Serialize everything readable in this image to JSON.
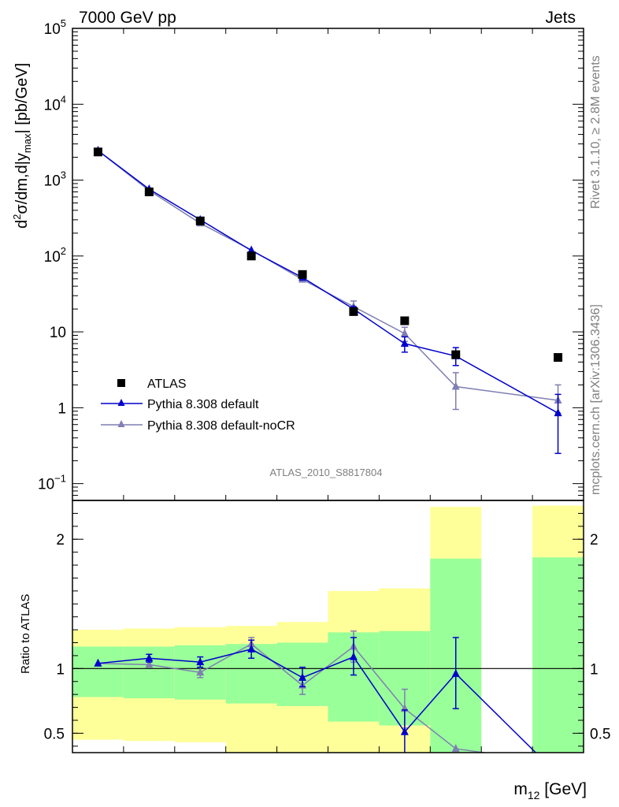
{
  "header": {
    "left": "7000 GeV pp",
    "right": "Jets"
  },
  "side_text": {
    "rivet": "Rivet 3.1.10, ≥ 2.8M events",
    "mcplots": "mcplots.cern.ch [arXiv:1306.3436]"
  },
  "analysis_label": "ATLAS_2010_S8817804",
  "colors": {
    "data": "#000000",
    "pythia_default": "#0000cc",
    "pythia_nocr": "#7f7fb2",
    "band_inner": "#99ff99",
    "band_outer": "#ffff99"
  },
  "chart_data": [
    {
      "type": "scatter",
      "yscale": "log",
      "ylim": [
        0.06,
        100000
      ],
      "ylabel": {
        "prefix": "d",
        "sup": "2",
        "mid": "σ/dm,d|y",
        "sub": "max",
        "suffix": "| [pb/GeV]"
      },
      "y_ticks": [
        {
          "base": "10",
          "sup": "5"
        },
        {
          "base": "10",
          "sup": "4"
        },
        {
          "base": "10",
          "sup": "3"
        },
        {
          "base": "10",
          "sup": "2"
        },
        {
          "base": "10",
          "sup": ""
        },
        {
          "base": "1",
          "sup": ""
        },
        {
          "base": "10",
          "sup": "−1"
        }
      ],
      "y_tick_values": [
        100000,
        10000,
        1000,
        100,
        10,
        1,
        0.1
      ],
      "x_bins": [
        1,
        2,
        3,
        4,
        5,
        6,
        7,
        8,
        9,
        10
      ],
      "series": [
        {
          "name": "ATLAS",
          "marker": "square",
          "bins": [
            1,
            2,
            3,
            4,
            5,
            6,
            7,
            8,
            10
          ],
          "values": [
            2350,
            700,
            290,
            100,
            57,
            18.5,
            14,
            5,
            4.6
          ]
        },
        {
          "name": "Pythia 8.308 default",
          "marker": "triangle",
          "bins": [
            1,
            2,
            3,
            4,
            5,
            6,
            7,
            8,
            10
          ],
          "values": [
            2450,
            760,
            300,
            118,
            52,
            20,
            7,
            4.8,
            0.85
          ],
          "err_low": [
            0,
            0,
            0,
            0,
            0,
            1.5,
            1.6,
            1.2,
            0.6
          ],
          "err_high": [
            0,
            0,
            0,
            0,
            0,
            1.5,
            1.6,
            1.4,
            0.65
          ]
        },
        {
          "name": "Pythia 8.308 default-noCR",
          "marker": "triangle",
          "bins": [
            1,
            2,
            3,
            4,
            5,
            6,
            7,
            8,
            10
          ],
          "values": [
            2450,
            730,
            270,
            120,
            49,
            21.5,
            9.5,
            1.9,
            1.25
          ],
          "err_low": [
            0,
            0,
            0,
            0,
            0,
            4,
            2,
            0.95,
            0.4
          ],
          "err_high": [
            0,
            0,
            0,
            0,
            0,
            4,
            2,
            1.0,
            0.75
          ]
        }
      ],
      "legend_position": "left"
    },
    {
      "type": "scatter",
      "ylim": [
        0.35,
        2.3
      ],
      "ylabel": "Ratio to ATLAS",
      "xlabel": {
        "base": "m",
        "sub": "12",
        "unit": " [GeV]"
      },
      "y_ticks": [
        "2",
        "1",
        "0.5"
      ],
      "y_tick_values": [
        2,
        1,
        0.5
      ],
      "reference_line": 1,
      "bands": [
        {
          "bin": 1,
          "inner": [
            0.78,
            1.17
          ],
          "outer": [
            0.45,
            1.3
          ]
        },
        {
          "bin": 2,
          "inner": [
            0.77,
            1.17
          ],
          "outer": [
            0.44,
            1.31
          ]
        },
        {
          "bin": 3,
          "inner": [
            0.76,
            1.18
          ],
          "outer": [
            0.43,
            1.32
          ]
        },
        {
          "bin": 4,
          "inner": [
            0.73,
            1.19
          ],
          "outer": [
            0.34,
            1.33
          ]
        },
        {
          "bin": 5,
          "inner": [
            0.71,
            1.2
          ],
          "outer": [
            0.34,
            1.36
          ]
        },
        {
          "bin": 6,
          "inner": [
            0.59,
            1.28
          ],
          "outer": [
            0.34,
            1.6
          ]
        },
        {
          "bin": 7,
          "inner": [
            0.56,
            1.29
          ],
          "outer": [
            0.34,
            1.62
          ]
        },
        {
          "bin": 8,
          "inner": [
            0.34,
            1.85
          ],
          "outer": [
            0.34,
            2.25
          ]
        },
        {
          "bin": 10,
          "inner": [
            0.34,
            1.86
          ],
          "outer": [
            0.34,
            2.26
          ]
        }
      ],
      "series": [
        {
          "name": "Pythia 8.308 default",
          "bins": [
            1,
            2,
            3,
            4,
            5,
            6,
            7,
            8,
            10
          ],
          "values": [
            1.04,
            1.08,
            1.05,
            1.15,
            0.93,
            1.09,
            0.51,
            0.96,
            0.18
          ],
          "err_low": [
            0,
            0.03,
            0.04,
            0.07,
            0.07,
            0.14,
            0.17,
            0.27,
            0
          ],
          "err_high": [
            0,
            0.03,
            0.04,
            0.07,
            0.08,
            0.15,
            0.17,
            0.28,
            0
          ]
        },
        {
          "name": "Pythia 8.308 default-noCR",
          "bins": [
            1,
            2,
            3,
            4,
            5,
            6,
            7,
            8,
            10
          ],
          "values": [
            1.04,
            1.03,
            0.97,
            1.19,
            0.87,
            1.17,
            0.69,
            0.38,
            0.27
          ],
          "err_low": [
            0,
            0,
            0.04,
            0.05,
            0.07,
            0.12,
            0.15,
            0,
            0
          ],
          "err_high": [
            0,
            0,
            0.04,
            0.05,
            0.07,
            0.12,
            0.15,
            0,
            0
          ]
        }
      ]
    }
  ]
}
